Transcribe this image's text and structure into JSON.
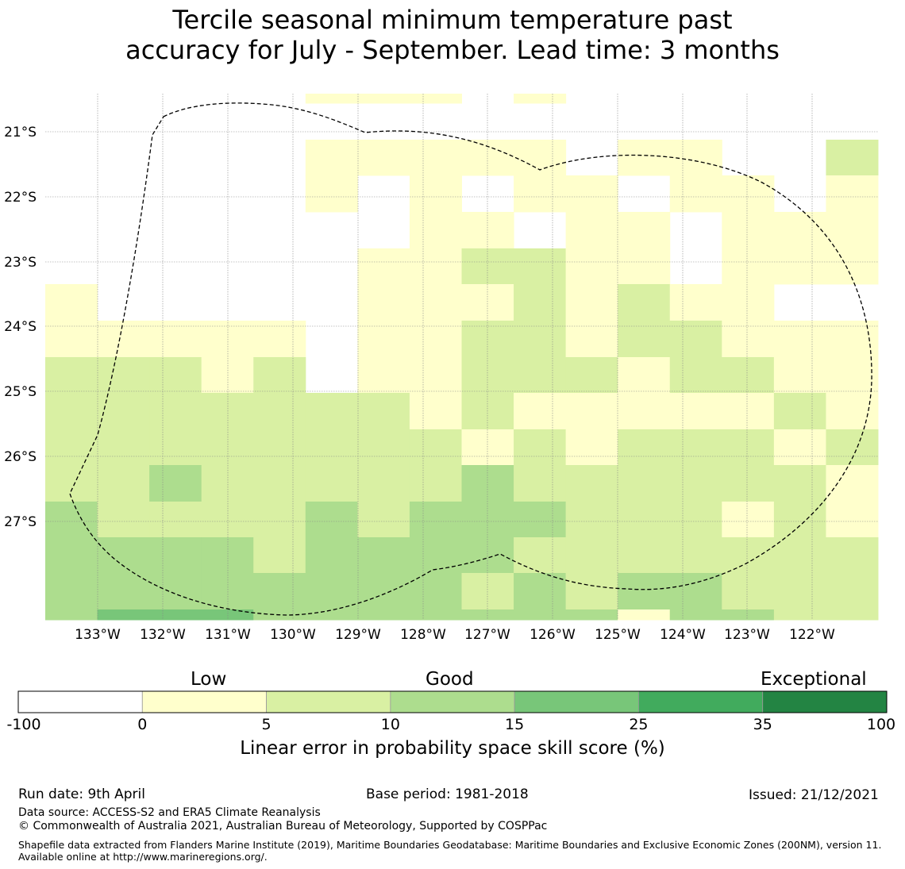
{
  "title": {
    "line1": "Tercile seasonal minimum temperature past",
    "line2": "accuracy for July - September. Lead time: 3 months"
  },
  "map": {
    "lat_ticks": [
      "21°S",
      "22°S",
      "23°S",
      "24°S",
      "25°S",
      "26°S",
      "27°S"
    ],
    "lon_ticks": [
      "133°W",
      "132°W",
      "131°W",
      "130°W",
      "129°W",
      "128°W",
      "127°W",
      "126°W",
      "125°W",
      "124°W",
      "123°W",
      "122°W"
    ],
    "category_colors": [
      "#ffffff",
      "#ffffcc",
      "#d9f0a3",
      "#addd8e",
      "#78c679",
      "#41ab5d",
      "#238443"
    ],
    "boundary": "dashed black",
    "grid": true,
    "grid_columns": 16,
    "grid_rows": 15,
    "cells": [
      [
        -1,
        -1,
        -1,
        -1,
        -1,
        -1,
        -1,
        -1,
        -1,
        -1,
        -1,
        -1,
        -1,
        -1,
        -1,
        -1
      ],
      [
        -1,
        -1,
        -1,
        -1,
        -1,
        1,
        1,
        1,
        1,
        1,
        -1,
        1,
        1,
        -1,
        -1,
        2
      ],
      [
        -1,
        -1,
        -1,
        -1,
        -1,
        1,
        -1,
        1,
        -1,
        1,
        1,
        -1,
        1,
        1,
        -1,
        1
      ],
      [
        -1,
        -1,
        -1,
        -1,
        -1,
        -1,
        -1,
        1,
        1,
        -1,
        1,
        1,
        -1,
        1,
        1,
        1
      ],
      [
        -1,
        -1,
        -1,
        -1,
        -1,
        -1,
        1,
        1,
        2,
        2,
        1,
        1,
        -1,
        1,
        1,
        1
      ],
      [
        1,
        -1,
        -1,
        -1,
        -1,
        -1,
        1,
        1,
        1,
        2,
        1,
        2,
        1,
        1,
        -1,
        -1
      ],
      [
        1,
        1,
        1,
        1,
        1,
        -1,
        1,
        1,
        2,
        2,
        1,
        2,
        2,
        1,
        1,
        1
      ],
      [
        2,
        2,
        2,
        1,
        2,
        -1,
        1,
        1,
        2,
        2,
        2,
        1,
        2,
        2,
        1,
        1
      ],
      [
        2,
        2,
        2,
        2,
        2,
        2,
        2,
        1,
        2,
        1,
        1,
        1,
        1,
        1,
        2,
        1
      ],
      [
        2,
        2,
        2,
        2,
        2,
        2,
        2,
        2,
        1,
        2,
        1,
        2,
        2,
        2,
        1,
        2
      ],
      [
        2,
        2,
        3,
        2,
        2,
        2,
        2,
        2,
        3,
        2,
        2,
        2,
        2,
        2,
        2,
        1
      ],
      [
        3,
        2,
        2,
        2,
        2,
        3,
        2,
        3,
        3,
        3,
        2,
        2,
        2,
        1,
        2,
        1
      ],
      [
        3,
        3,
        3,
        3,
        2,
        3,
        3,
        3,
        3,
        2,
        2,
        2,
        2,
        2,
        2,
        2
      ],
      [
        3,
        3,
        3,
        3,
        3,
        3,
        3,
        3,
        2,
        3,
        2,
        3,
        3,
        2,
        2,
        2
      ],
      [
        3,
        4,
        4,
        4,
        3,
        3,
        3,
        3,
        3,
        3,
        3,
        1,
        3,
        3,
        2,
        2
      ]
    ]
  },
  "colorbar": {
    "words": [
      "Low",
      "Good",
      "Exceptional"
    ],
    "ticks": [
      "-100",
      "0",
      "5",
      "10",
      "15",
      "25",
      "35",
      "100"
    ],
    "label": "Linear error in probability space skill score (%)",
    "categories": [
      {
        "range": "-100–0",
        "color": "#ffffff"
      },
      {
        "range": "0–5",
        "color": "#ffffcc"
      },
      {
        "range": "5–10",
        "color": "#d9f0a3"
      },
      {
        "range": "10–15",
        "color": "#addd8e"
      },
      {
        "range": "15–25",
        "color": "#78c679"
      },
      {
        "range": "25–35",
        "color": "#41ab5d"
      },
      {
        "range": "35–100",
        "color": "#238443"
      }
    ]
  },
  "footer": {
    "run_date": "Run date: 9th April",
    "base_period": "Base period: 1981-2018",
    "issued": "Issued: 21/12/2021",
    "data_source": "Data source: ACCESS-S2 and ERA5 Climate Reanalysis",
    "copyright": "© Commonwealth of Australia 2021, Australian Bureau of Meteorology, Supported by COSPPac",
    "shapefile": "Shapefile data extracted from Flanders Marine Institute (2019), Maritime Boundaries Geodatabase: Maritime Boundaries and Exclusive Economic Zones (200NM), version 11. Available online at http://www.marineregions.org/."
  }
}
